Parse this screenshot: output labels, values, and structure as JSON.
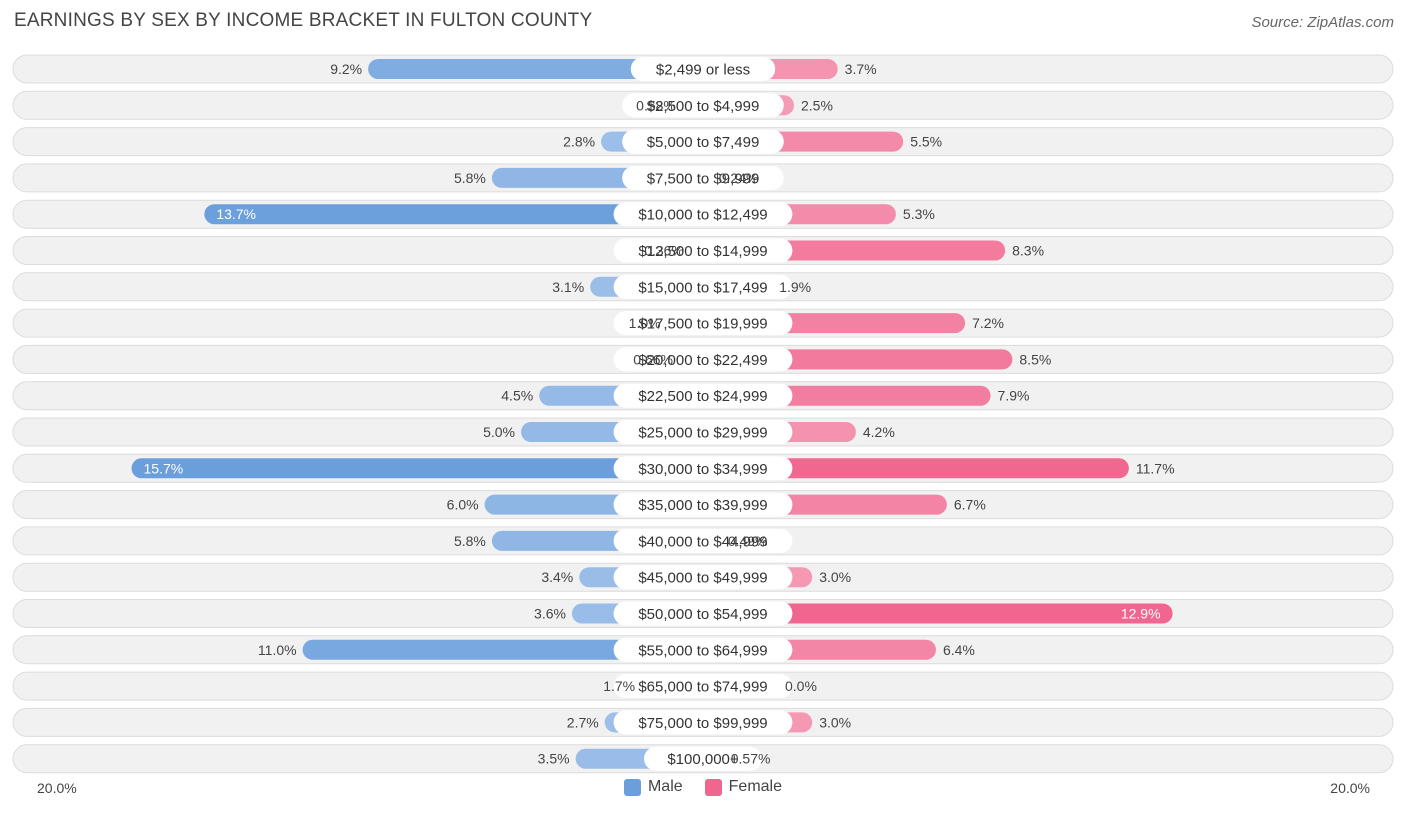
{
  "title": "EARNINGS BY SEX BY INCOME BRACKET IN FULTON COUNTY",
  "source": "Source: ZipAtlas.com",
  "colors": {
    "male": "#6a9fdc",
    "male_light": "#a9c7ec",
    "female": "#f0668f",
    "female_light": "#f6a9c0"
  },
  "chart_data": {
    "type": "bar",
    "orientation": "horizontal-diverging",
    "title": "EARNINGS BY SEX BY INCOME BRACKET IN FULTON COUNTY",
    "categories": [
      "$2,499 or less",
      "$2,500 to $4,999",
      "$5,000 to $7,499",
      "$7,500 to $9,999",
      "$10,000 to $12,499",
      "$12,500 to $14,999",
      "$15,000 to $17,499",
      "$17,500 to $19,999",
      "$20,000 to $22,499",
      "$22,500 to $24,999",
      "$25,000 to $29,999",
      "$30,000 to $34,999",
      "$35,000 to $39,999",
      "$40,000 to $44,999",
      "$45,000 to $49,999",
      "$50,000 to $54,999",
      "$55,000 to $64,999",
      "$65,000 to $74,999",
      "$75,000 to $99,999",
      "$100,000+"
    ],
    "series": [
      {
        "name": "Male",
        "values": [
          9.2,
          0.58,
          2.8,
          5.8,
          13.7,
          0.36,
          3.1,
          1.0,
          0.66,
          4.5,
          5.0,
          15.7,
          6.0,
          5.8,
          3.4,
          3.6,
          11.0,
          1.7,
          2.7,
          3.5
        ],
        "labels": [
          "9.2%",
          "0.58%",
          "2.8%",
          "5.8%",
          "13.7%",
          "0.36%",
          "3.1%",
          "1.0%",
          "0.66%",
          "4.5%",
          "5.0%",
          "15.7%",
          "6.0%",
          "5.8%",
          "3.4%",
          "3.6%",
          "11.0%",
          "1.7%",
          "2.7%",
          "3.5%"
        ]
      },
      {
        "name": "Female",
        "values": [
          3.7,
          2.5,
          5.5,
          0.24,
          5.3,
          8.3,
          1.9,
          7.2,
          8.5,
          7.9,
          4.2,
          11.7,
          6.7,
          0.49,
          3.0,
          12.9,
          6.4,
          0.0,
          3.0,
          0.57
        ],
        "labels": [
          "3.7%",
          "2.5%",
          "5.5%",
          "0.24%",
          "5.3%",
          "8.3%",
          "1.9%",
          "7.2%",
          "8.5%",
          "7.9%",
          "4.2%",
          "11.7%",
          "6.7%",
          "0.49%",
          "3.0%",
          "12.9%",
          "6.4%",
          "0.0%",
          "3.0%",
          "0.57%"
        ]
      }
    ],
    "xlim": [
      -20,
      20
    ],
    "axis_labels": {
      "left": "20.0%",
      "right": "20.0%"
    },
    "legend": [
      "Male",
      "Female"
    ],
    "legend_position": "bottom-center"
  }
}
